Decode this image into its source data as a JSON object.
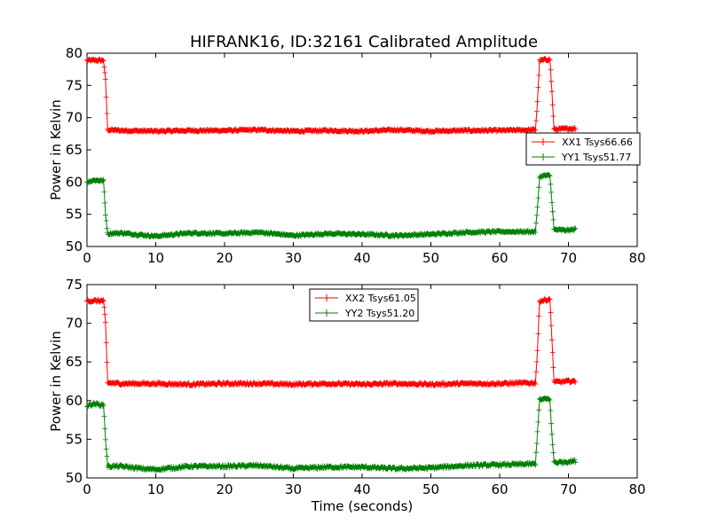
{
  "title": "HIFRANK16, ID:32161 Calibrated Amplitude",
  "colors": {
    "red": "#ff0000",
    "green": "#008000"
  },
  "chart_data": [
    {
      "type": "line",
      "xlabel": "",
      "ylabel": "Power in Kelvin",
      "xlim": [
        0,
        80
      ],
      "ylim": [
        50,
        80
      ],
      "xticks": [
        "0",
        "10",
        "20",
        "30",
        "40",
        "50",
        "60",
        "70",
        "80"
      ],
      "yticks": [
        "50",
        "55",
        "60",
        "65",
        "70",
        "75",
        "80"
      ],
      "legend_position": "center-right",
      "series": [
        {
          "name": "XX1 Tsys66.66",
          "color": "#ff0000",
          "x": [
            0,
            2.4,
            2.7,
            3.0,
            5,
            10,
            15,
            20,
            25,
            30,
            35,
            40,
            45,
            50,
            55,
            60,
            65.2,
            65.5,
            65.8,
            66.5,
            67.3,
            67.6,
            67.9,
            68.3,
            70,
            71
          ],
          "y": [
            78.9,
            78.9,
            75.8,
            68.1,
            68.0,
            67.9,
            68.0,
            68.0,
            68.1,
            67.9,
            68.0,
            67.9,
            68.1,
            67.9,
            68.0,
            68.0,
            68.1,
            72.5,
            78.8,
            79.0,
            79.0,
            74.0,
            68.2,
            68.2,
            68.3,
            68.3
          ]
        },
        {
          "name": "YY1 Tsys51.77",
          "color": "#008000",
          "x": [
            0,
            1,
            2.4,
            2.7,
            3.0,
            5,
            8,
            10,
            15,
            20,
            25,
            30,
            35,
            40,
            45,
            50,
            55,
            60,
            65.2,
            65.5,
            65.8,
            66.5,
            67.3,
            67.6,
            67.9,
            68.3,
            70,
            71
          ],
          "y": [
            60.0,
            60.3,
            60.2,
            55.0,
            52.0,
            52.1,
            51.8,
            51.6,
            52.1,
            52.0,
            52.2,
            51.7,
            52.0,
            51.9,
            51.7,
            51.9,
            52.2,
            52.3,
            52.3,
            56.0,
            60.8,
            61.0,
            61.0,
            57.0,
            52.6,
            52.6,
            52.5,
            52.7
          ]
        }
      ]
    },
    {
      "type": "line",
      "xlabel": "Time (seconds)",
      "ylabel": "Power in Kelvin",
      "xlim": [
        0,
        80
      ],
      "ylim": [
        50,
        75
      ],
      "xticks": [
        "0",
        "10",
        "20",
        "30",
        "40",
        "50",
        "60",
        "70",
        "80"
      ],
      "yticks": [
        "50",
        "55",
        "60",
        "65",
        "70",
        "75"
      ],
      "legend_position": "upper-center",
      "series": [
        {
          "name": "XX2 Tsys61.05",
          "color": "#ff0000",
          "x": [
            0,
            2.4,
            2.7,
            3.0,
            5,
            10,
            15,
            20,
            25,
            30,
            35,
            40,
            45,
            50,
            55,
            60,
            65.2,
            65.5,
            65.8,
            66.5,
            67.3,
            67.6,
            67.9,
            68.3,
            70,
            71
          ],
          "y": [
            72.9,
            72.9,
            70.0,
            62.3,
            62.2,
            62.2,
            62.1,
            62.2,
            62.2,
            62.1,
            62.2,
            62.1,
            62.2,
            62.1,
            62.2,
            62.2,
            62.3,
            66.5,
            72.9,
            73.0,
            73.0,
            68.0,
            62.5,
            62.4,
            62.5,
            62.5
          ]
        },
        {
          "name": "YY2 Tsys51.20",
          "color": "#008000",
          "x": [
            0,
            1,
            2.4,
            2.7,
            3.0,
            5,
            8,
            10,
            15,
            20,
            25,
            30,
            35,
            40,
            45,
            50,
            55,
            60,
            65.2,
            65.5,
            65.8,
            66.5,
            67.3,
            67.6,
            67.9,
            68.3,
            70,
            71
          ],
          "y": [
            59.3,
            59.6,
            59.4,
            55.0,
            51.5,
            51.5,
            51.2,
            51.1,
            51.5,
            51.5,
            51.6,
            51.2,
            51.4,
            51.4,
            51.2,
            51.3,
            51.6,
            51.7,
            51.8,
            56.0,
            60.1,
            60.2,
            60.2,
            55.5,
            52.1,
            52.0,
            52.1,
            52.2
          ]
        }
      ]
    }
  ]
}
